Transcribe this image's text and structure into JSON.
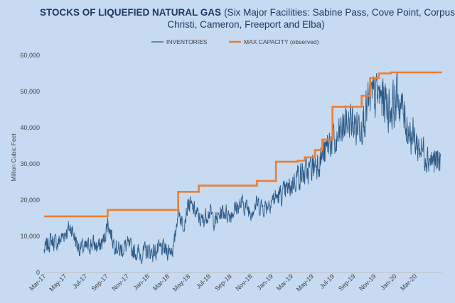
{
  "chart_data": {
    "type": "line",
    "title": "STOCKS OF LIQUEFIED NATURAL GAS",
    "title_bold": "STOCKS OF LIQUEFIED NATURAL GAS",
    "title_line1_rest": "(Six Major Facilities: Sabine Pass, Cove Point, Corpus",
    "title_line2": "Christi, Cameron, Freeport and Elba)",
    "ylabel": "Million Cubic Feet",
    "xlabel": "",
    "ylim": [
      0,
      60000
    ],
    "yticks": [
      0,
      10000,
      20000,
      30000,
      40000,
      50000,
      60000
    ],
    "ytick_labels": [
      "0",
      "10,000",
      "20,000",
      "30,000",
      "40,000",
      "50,000",
      "60,000"
    ],
    "xticks": [
      "2017-03-01",
      "2017-05-01",
      "2017-07-01",
      "2017-09-01",
      "2017-11-01",
      "2018-01-01",
      "2018-03-01",
      "2018-05-01",
      "2018-07-01",
      "2018-09-01",
      "2018-11-01",
      "2019-01-01",
      "2019-03-01",
      "2019-05-01",
      "2019-07-01",
      "2019-09-01",
      "2019-11-01",
      "2020-01-01",
      "2020-03-01"
    ],
    "xtick_labels": [
      "Mar-17",
      "May-17",
      "Jul-17",
      "Sep-17",
      "Nov-17",
      "Jan-18",
      "Mar-18",
      "May-18",
      "Jul-18",
      "Sep-18",
      "Nov-18",
      "Jan-19",
      "Mar-19",
      "May-19",
      "Jul-19",
      "Sep-19",
      "Nov-19",
      "Jan-20",
      "Mar-20"
    ],
    "xlim": [
      "2017-03-01",
      "2020-05-20"
    ],
    "grid": false,
    "legend": "top",
    "series": [
      {
        "name": "INVENTORIES",
        "color": "#2e5a87",
        "x": [
          "2017-03-01",
          "2017-03-21",
          "2017-04-10",
          "2017-05-01",
          "2017-05-20",
          "2017-06-10",
          "2017-07-01",
          "2017-07-20",
          "2017-08-10",
          "2017-08-25",
          "2017-09-05",
          "2017-09-20",
          "2017-10-10",
          "2017-11-01",
          "2017-11-20",
          "2017-12-10",
          "2018-01-01",
          "2018-01-20",
          "2018-02-10",
          "2018-03-01",
          "2018-03-20",
          "2018-04-01",
          "2018-04-15",
          "2018-05-01",
          "2018-05-20",
          "2018-06-10",
          "2018-07-01",
          "2018-07-20",
          "2018-08-10",
          "2018-09-01",
          "2018-09-20",
          "2018-10-10",
          "2018-11-01",
          "2018-11-20",
          "2018-12-10",
          "2019-01-01",
          "2019-01-20",
          "2019-02-10",
          "2019-03-01",
          "2019-03-20",
          "2019-04-10",
          "2019-05-01",
          "2019-05-20",
          "2019-06-10",
          "2019-06-25",
          "2019-07-10",
          "2019-08-01",
          "2019-08-20",
          "2019-09-10",
          "2019-10-01",
          "2019-10-20",
          "2019-11-10",
          "2019-12-01",
          "2019-12-20",
          "2020-01-10",
          "2020-02-01",
          "2020-02-20",
          "2020-03-10",
          "2020-04-01",
          "2020-04-20",
          "2020-05-15"
        ],
        "values": [
          6000,
          9000,
          8000,
          11000,
          12500,
          7000,
          6500,
          8000,
          7000,
          9000,
          14000,
          9000,
          6000,
          7500,
          6000,
          5000,
          6000,
          5500,
          6500,
          6000,
          7000,
          18000,
          13000,
          19000,
          17000,
          14000,
          17000,
          14000,
          17000,
          16000,
          18000,
          19000,
          17000,
          19000,
          18000,
          20000,
          21000,
          22000,
          24000,
          27000,
          27000,
          29000,
          31000,
          33000,
          37000,
          35000,
          40000,
          42000,
          40000,
          43000,
          47000,
          49000,
          48000,
          45000,
          49000,
          42000,
          38000,
          35000,
          33000,
          31000,
          30000
        ]
      },
      {
        "name": "MAX CAPACITY (observed)",
        "color": "#ed7d31",
        "x": [
          "2017-03-01",
          "2017-09-05",
          "2017-09-05",
          "2018-04-01",
          "2018-04-01",
          "2018-06-01",
          "2018-06-01",
          "2018-11-20",
          "2018-11-20",
          "2019-01-15",
          "2019-01-15",
          "2019-03-20",
          "2019-03-20",
          "2019-04-10",
          "2019-04-10",
          "2019-05-10",
          "2019-05-10",
          "2019-06-01",
          "2019-06-01",
          "2019-07-01",
          "2019-07-01",
          "2019-09-25",
          "2019-09-25",
          "2019-10-20",
          "2019-10-20",
          "2019-11-15",
          "2019-11-15",
          "2019-12-20",
          "2019-12-20",
          "2020-05-20"
        ],
        "values": [
          15500,
          15500,
          17300,
          17300,
          22300,
          22300,
          24000,
          24000,
          25300,
          25300,
          30600,
          30600,
          30900,
          30900,
          31800,
          31800,
          33800,
          33800,
          36700,
          36700,
          45800,
          45800,
          48800,
          48800,
          53700,
          53700,
          55000,
          55000,
          55300,
          55300
        ]
      }
    ]
  }
}
